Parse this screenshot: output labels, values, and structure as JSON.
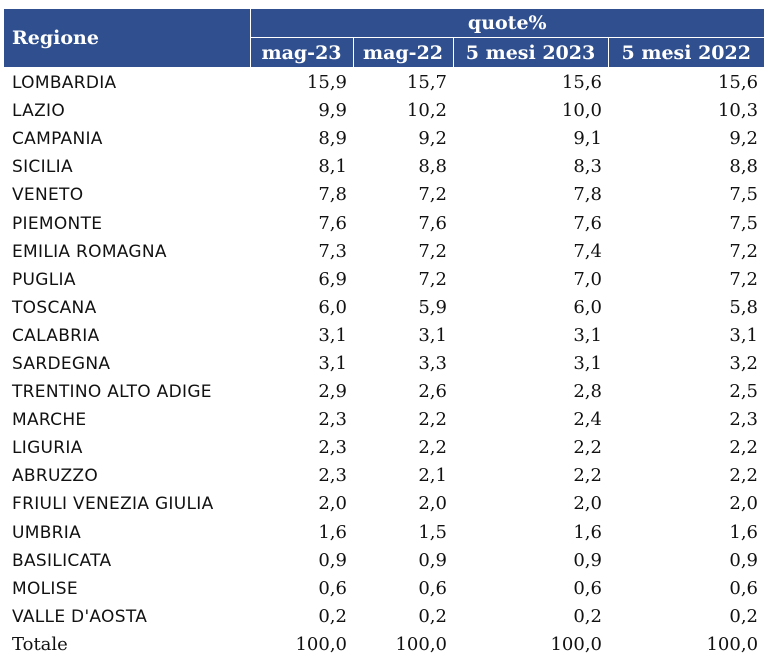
{
  "header": {
    "region_label": "Regione",
    "group_label": "quote%",
    "columns": [
      "mag-23",
      "mag-22",
      "5 mesi 2023",
      "5 mesi 2022"
    ]
  },
  "rows": [
    {
      "region": "LOMBARDIA",
      "values": [
        "15,9",
        "15,7",
        "15,6",
        "15,6"
      ]
    },
    {
      "region": "LAZIO",
      "values": [
        "9,9",
        "10,2",
        "10,0",
        "10,3"
      ]
    },
    {
      "region": "CAMPANIA",
      "values": [
        "8,9",
        "9,2",
        "9,1",
        "9,2"
      ]
    },
    {
      "region": "SICILIA",
      "values": [
        "8,1",
        "8,8",
        "8,3",
        "8,8"
      ]
    },
    {
      "region": "VENETO",
      "values": [
        "7,8",
        "7,2",
        "7,8",
        "7,5"
      ]
    },
    {
      "region": "PIEMONTE",
      "values": [
        "7,6",
        "7,6",
        "7,6",
        "7,5"
      ]
    },
    {
      "region": "EMILIA ROMAGNA",
      "values": [
        "7,3",
        "7,2",
        "7,4",
        "7,2"
      ]
    },
    {
      "region": "PUGLIA",
      "values": [
        "6,9",
        "7,2",
        "7,0",
        "7,2"
      ]
    },
    {
      "region": "TOSCANA",
      "values": [
        "6,0",
        "5,9",
        "6,0",
        "5,8"
      ]
    },
    {
      "region": "CALABRIA",
      "values": [
        "3,1",
        "3,1",
        "3,1",
        "3,1"
      ]
    },
    {
      "region": "SARDEGNA",
      "values": [
        "3,1",
        "3,3",
        "3,1",
        "3,2"
      ]
    },
    {
      "region": "TRENTINO ALTO ADIGE",
      "values": [
        "2,9",
        "2,6",
        "2,8",
        "2,5"
      ]
    },
    {
      "region": "MARCHE",
      "values": [
        "2,3",
        "2,2",
        "2,4",
        "2,3"
      ]
    },
    {
      "region": "LIGURIA",
      "values": [
        "2,3",
        "2,2",
        "2,2",
        "2,2"
      ]
    },
    {
      "region": "ABRUZZO",
      "values": [
        "2,3",
        "2,1",
        "2,2",
        "2,2"
      ]
    },
    {
      "region": "FRIULI VENEZIA GIULIA",
      "values": [
        "2,0",
        "2,0",
        "2,0",
        "2,0"
      ]
    },
    {
      "region": "UMBRIA",
      "values": [
        "1,6",
        "1,5",
        "1,6",
        "1,6"
      ]
    },
    {
      "region": "BASILICATA",
      "values": [
        "0,9",
        "0,9",
        "0,9",
        "0,9"
      ]
    },
    {
      "region": "MOLISE",
      "values": [
        "0,6",
        "0,6",
        "0,6",
        "0,6"
      ]
    },
    {
      "region": "VALLE D'AOSTA",
      "values": [
        "0,2",
        "0,2",
        "0,2",
        "0,2"
      ]
    }
  ],
  "total": {
    "region": "Totale",
    "values": [
      "100,0",
      "100,0",
      "100,0",
      "100,0"
    ]
  },
  "colors": {
    "header_bg": "#2f4f8f",
    "header_text": "#ffffff"
  }
}
